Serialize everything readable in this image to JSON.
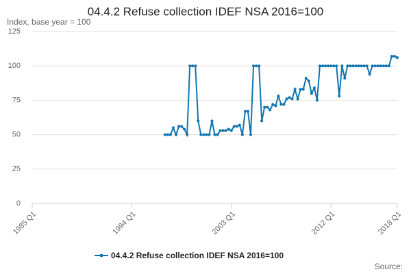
{
  "chart_data": {
    "type": "line",
    "title": "04.4.2 Refuse collection IDEF NSA 2016=100",
    "subtitle": "Index, base year = 100",
    "source": "Source:",
    "x": [
      "1997 Q1",
      "1997 Q2",
      "1997 Q3",
      "1997 Q4",
      "1998 Q1",
      "1998 Q2",
      "1998 Q3",
      "1998 Q4",
      "1999 Q1",
      "1999 Q2",
      "1999 Q3",
      "1999 Q4",
      "2000 Q1",
      "2000 Q2",
      "2000 Q3",
      "2000 Q4",
      "2001 Q1",
      "2001 Q2",
      "2001 Q3",
      "2001 Q4",
      "2002 Q1",
      "2002 Q2",
      "2002 Q3",
      "2002 Q4",
      "2003 Q1",
      "2003 Q2",
      "2003 Q3",
      "2003 Q4",
      "2004 Q1",
      "2004 Q2",
      "2004 Q3",
      "2004 Q4",
      "2005 Q1",
      "2005 Q2",
      "2005 Q3",
      "2005 Q4",
      "2006 Q1",
      "2006 Q2",
      "2006 Q3",
      "2006 Q4",
      "2007 Q1",
      "2007 Q2",
      "2007 Q3",
      "2007 Q4",
      "2008 Q1",
      "2008 Q2",
      "2008 Q3",
      "2008 Q4",
      "2009 Q1",
      "2009 Q2",
      "2009 Q3",
      "2009 Q4",
      "2010 Q1",
      "2010 Q2",
      "2010 Q3",
      "2010 Q4",
      "2011 Q1",
      "2011 Q2",
      "2011 Q3",
      "2011 Q4",
      "2012 Q1",
      "2012 Q2",
      "2012 Q3",
      "2012 Q4",
      "2013 Q1",
      "2013 Q2",
      "2013 Q3",
      "2013 Q4",
      "2014 Q1",
      "2014 Q2",
      "2014 Q3",
      "2014 Q4",
      "2015 Q1",
      "2015 Q2",
      "2015 Q3",
      "2015 Q4",
      "2016 Q1",
      "2016 Q2",
      "2016 Q3",
      "2016 Q4",
      "2017 Q1",
      "2017 Q2",
      "2017 Q3",
      "2017 Q4",
      "2018 Q1"
    ],
    "series": [
      {
        "name": "04.4.2 Refuse collection IDEF NSA 2016=100",
        "color": "#0f75b0",
        "values": [
          50,
          50,
          50,
          55,
          50,
          56,
          56,
          54,
          50,
          100,
          100,
          100,
          60,
          50,
          50,
          50,
          50,
          60,
          50,
          50,
          53,
          53,
          53,
          54,
          53,
          56,
          56,
          57,
          50,
          67,
          67,
          50,
          100,
          100,
          100,
          60,
          70,
          70,
          68,
          72,
          71,
          78,
          72,
          72,
          76,
          77,
          76,
          83,
          76,
          83,
          83,
          91,
          89,
          80,
          84,
          75,
          100,
          100,
          100,
          100,
          100,
          100,
          100,
          78,
          100,
          91,
          100,
          100,
          100,
          100,
          100,
          100,
          100,
          100,
          94,
          100,
          100,
          100,
          100,
          100,
          100,
          100,
          107,
          107,
          106
        ]
      }
    ],
    "xlim": [
      "1985 Q1",
      "2018 Q1"
    ],
    "xticks": [
      "1985 Q1",
      "1994 Q1",
      "2003 Q1",
      "2012 Q1",
      "2018 Q1"
    ],
    "ylim": [
      0,
      125
    ],
    "yticks": [
      0,
      25,
      50,
      75,
      100,
      125
    ],
    "grid": true
  }
}
